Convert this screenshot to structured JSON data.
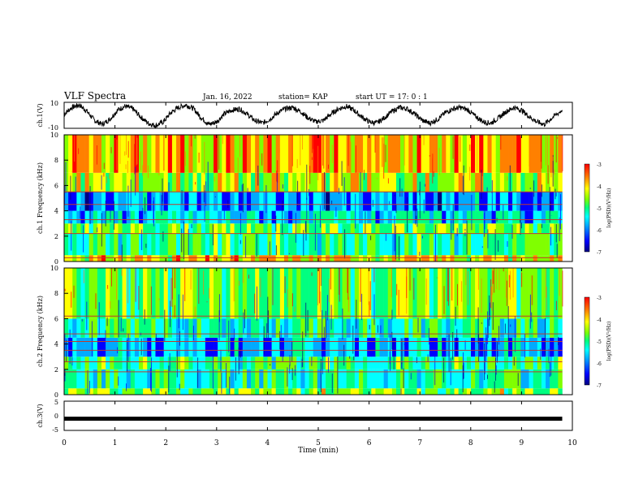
{
  "header": {
    "title": "VLF Spectra",
    "date": "Jan. 16, 2022",
    "station": "station= KAP",
    "start_ut": "start UT =  17: 0  : 1"
  },
  "colorbar": {
    "label": "log(PSD)(V²/Hz)",
    "ticks": [
      "-3",
      "-4",
      "-5",
      "-6",
      "-7"
    ],
    "range": [
      -7,
      -3
    ],
    "colors": [
      "#000080",
      "#0000ff",
      "#00aaff",
      "#00ffff",
      "#00ff80",
      "#80ff00",
      "#ffff00",
      "#ff8000",
      "#ff0000"
    ]
  },
  "chart_data": [
    {
      "type": "line",
      "panel": "ch1-waveform",
      "ylabel": "ch.1(V)",
      "ylim": [
        -10,
        10
      ],
      "y_ticks": [
        "10",
        "-10"
      ],
      "xlim": [
        0,
        10
      ],
      "x_end": 9.8,
      "series": [
        {
          "x": [
            0,
            0.15,
            0.3,
            0.45,
            0.6,
            0.75,
            0.9,
            1.05,
            1.2,
            1.35,
            1.5,
            1.65,
            1.8,
            1.95,
            2.1,
            2.25,
            2.4,
            2.55,
            2.7,
            2.85,
            3.0,
            3.15,
            3.3,
            3.45,
            3.6,
            3.75,
            3.9,
            4.05,
            4.2,
            4.35,
            4.5,
            4.65,
            4.8,
            4.95,
            5.1,
            5.25,
            5.4,
            5.55,
            5.7,
            5.85,
            6.0,
            6.15,
            6.3,
            6.45,
            6.6,
            6.75,
            6.9,
            7.05,
            7.2,
            7.35,
            7.5,
            7.65,
            7.8,
            7.95,
            8.1,
            8.25,
            8.4,
            8.55,
            8.7,
            8.85,
            9.0,
            9.15,
            9.3,
            9.45,
            9.6,
            9.8
          ],
          "y": [
            1,
            6,
            8,
            3,
            -4,
            -7,
            -3,
            4,
            7,
            5,
            -1,
            -6,
            -8,
            -5,
            2,
            6,
            8,
            5,
            -2,
            -7,
            -5,
            1,
            4,
            5,
            1,
            -4,
            -6,
            -3,
            2,
            5,
            6,
            3,
            -2,
            -5,
            -4,
            1,
            5,
            7,
            4,
            -1,
            -5,
            -6,
            -2,
            3,
            6,
            5,
            1,
            -4,
            -6,
            -3,
            2,
            5,
            6,
            4,
            -1,
            -5,
            -6,
            -2,
            3,
            6,
            4,
            -1,
            -5,
            -7,
            -2,
            4
          ]
        }
      ]
    },
    {
      "type": "heatmap",
      "panel": "ch1-spectrogram",
      "ylabel": "ch.1 Frequency (kHz)",
      "ylim": [
        0,
        10
      ],
      "y_ticks": [
        "10",
        "8",
        "6",
        "4",
        "2",
        "0"
      ],
      "xlim": [
        0,
        10
      ],
      "x_end": 9.8,
      "description_bands": [
        {
          "from_khz": 0,
          "to_khz": 0.5,
          "level": -4.0
        },
        {
          "from_khz": 0.5,
          "to_khz": 2.2,
          "level": -5.0
        },
        {
          "from_khz": 2.2,
          "to_khz": 3.0,
          "level": -4.6
        },
        {
          "from_khz": 3.0,
          "to_khz": 4.0,
          "level": -5.6
        },
        {
          "from_khz": 4.0,
          "to_khz": 5.5,
          "level": -6.0
        },
        {
          "from_khz": 5.5,
          "to_khz": 7.0,
          "level": -4.3
        },
        {
          "from_khz": 7.0,
          "to_khz": 10.0,
          "level": -3.8
        }
      ],
      "horizontal_lines_khz": [
        0.3,
        2.2,
        3.3,
        4.5,
        5.5
      ]
    },
    {
      "type": "heatmap",
      "panel": "ch2-spectrogram",
      "ylabel": "ch.2 Frequency (kHz)",
      "ylim": [
        0,
        10
      ],
      "y_ticks": [
        "10",
        "8",
        "6",
        "4",
        "2",
        "0"
      ],
      "xlim": [
        0,
        10
      ],
      "x_end": 9.8,
      "description_bands": [
        {
          "from_khz": 0,
          "to_khz": 0.5,
          "level": -4.5
        },
        {
          "from_khz": 0.5,
          "to_khz": 2.0,
          "level": -5.2
        },
        {
          "from_khz": 2.0,
          "to_khz": 3.0,
          "level": -5.0
        },
        {
          "from_khz": 3.0,
          "to_khz": 4.5,
          "level": -5.9
        },
        {
          "from_khz": 4.5,
          "to_khz": 6.0,
          "level": -5.2
        },
        {
          "from_khz": 6.0,
          "to_khz": 10.0,
          "level": -4.6
        }
      ],
      "horizontal_lines_khz": [
        1.8,
        2.6,
        3.5,
        4.2,
        4.8,
        6.2
      ]
    },
    {
      "type": "line",
      "panel": "ch3-waveform",
      "ylabel": "ch.3(V)",
      "ylim": [
        -5,
        5
      ],
      "y_ticks": [
        "5",
        "0",
        "-5"
      ],
      "xlim": [
        0,
        10
      ],
      "x_end": 9.8,
      "series": [
        {
          "x": [
            0,
            9.8
          ],
          "y": [
            -1,
            -1
          ]
        }
      ]
    }
  ],
  "x_axis": {
    "label": "Time (min)",
    "ticks": [
      "0",
      "1",
      "2",
      "3",
      "4",
      "5",
      "6",
      "7",
      "8",
      "9",
      "10"
    ]
  }
}
